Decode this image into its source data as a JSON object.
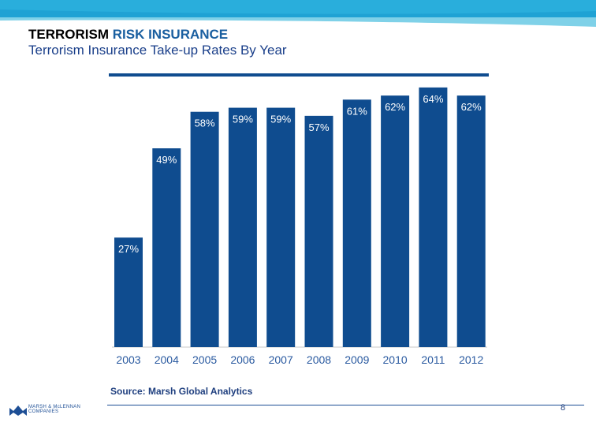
{
  "header": {
    "title_part1": "TERRORISM",
    "title_part2": "RISK INSURANCE",
    "subtitle": "Terrorism Insurance Take-up Rates By Year"
  },
  "chart_data": {
    "type": "bar",
    "title": "Terrorism Insurance Take-up Rates By Year",
    "categories": [
      "2003",
      "2004",
      "2005",
      "2006",
      "2007",
      "2008",
      "2009",
      "2010",
      "2011",
      "2012"
    ],
    "values": [
      27,
      49,
      58,
      59,
      59,
      57,
      61,
      62,
      64,
      62
    ],
    "data_labels": [
      "27%",
      "49%",
      "58%",
      "59%",
      "59%",
      "57%",
      "61%",
      "62%",
      "64%",
      "62%"
    ],
    "unit": "%",
    "ylim": [
      0,
      70
    ],
    "xlabel": "",
    "ylabel": "",
    "grid": false,
    "bar_color": "#0f4c8f"
  },
  "source": "Source: Marsh Global Analytics",
  "footer": {
    "logo_line1": "MARSH & McLENNAN",
    "logo_line2": "COMPANIES",
    "page_number": "8"
  },
  "colors": {
    "accent": "#1a5fa0",
    "bar": "#0f4c8f",
    "band_light": "#7fd1e8",
    "band_dark": "#1fa2d4"
  }
}
